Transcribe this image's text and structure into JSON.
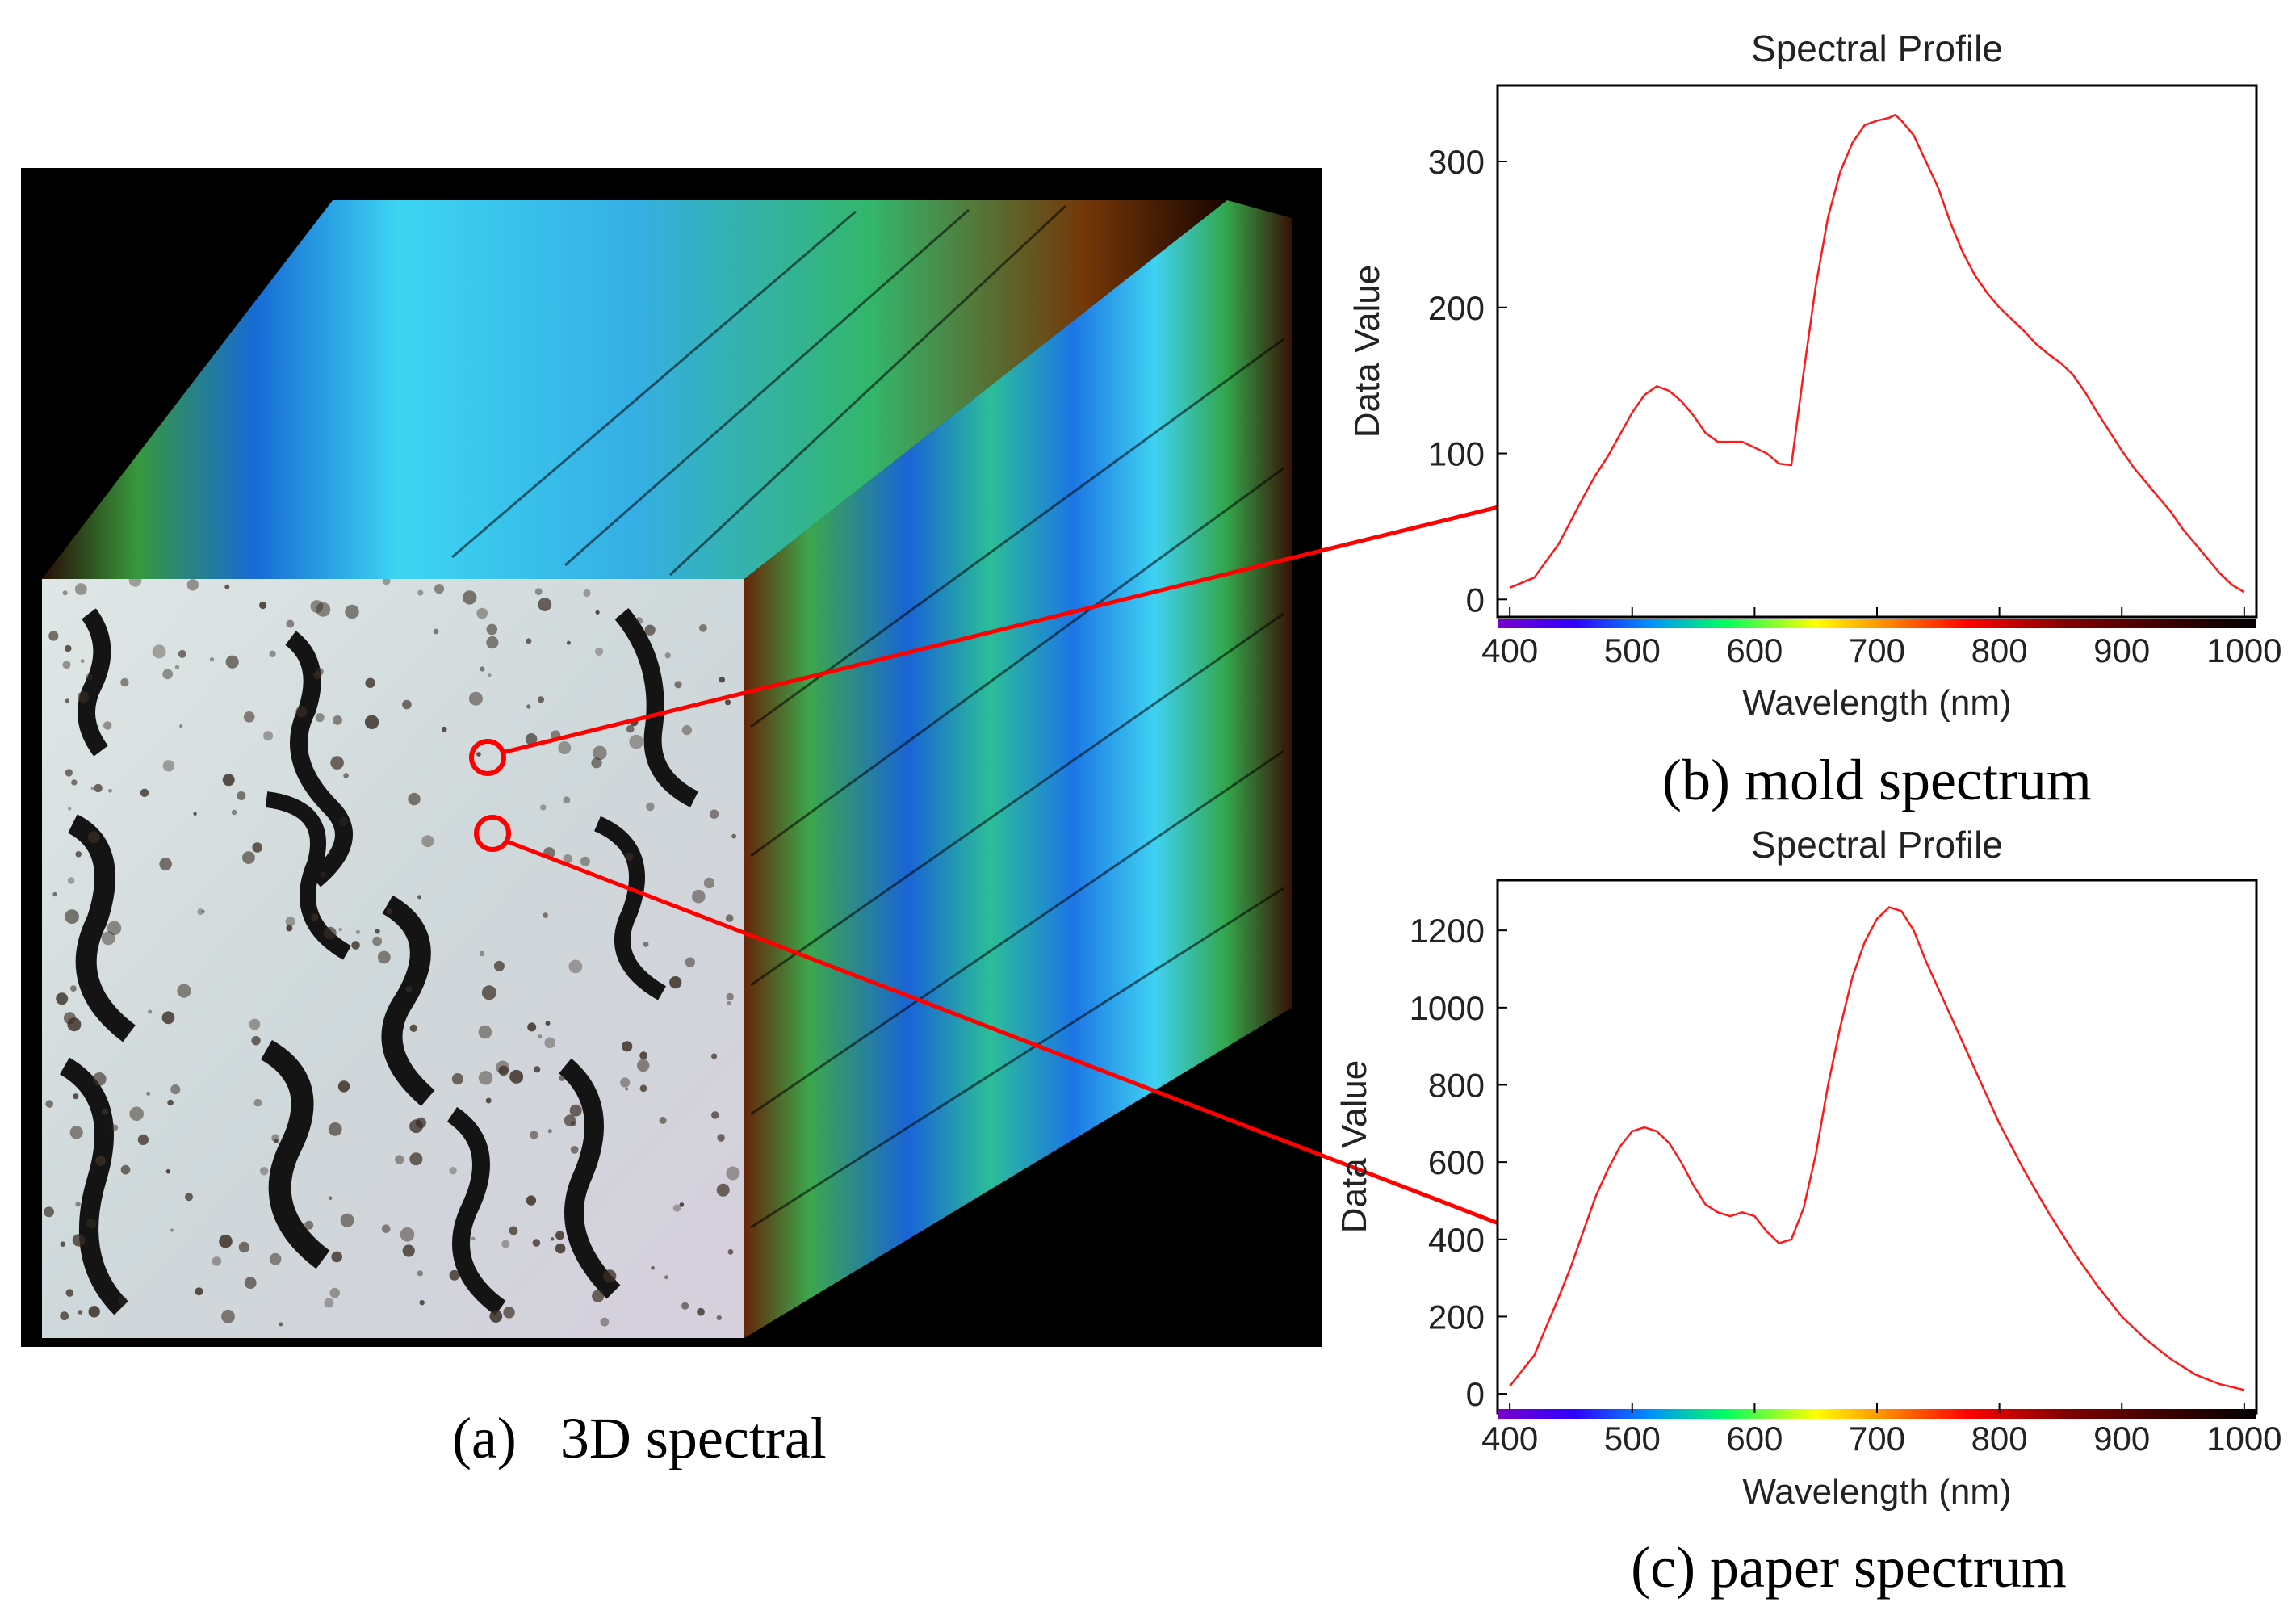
{
  "panel_a": {
    "caption": "(a)   3D spectral",
    "markers": [
      {
        "name": "mold-sample-marker",
        "target": "chart_b"
      },
      {
        "name": "paper-sample-marker",
        "target": "chart_c"
      }
    ]
  },
  "chart_data": [
    {
      "id": "chart_b",
      "type": "line",
      "title": "Spectral Profile",
      "xlabel": "Wavelength (nm)",
      "ylabel": "Data Value",
      "caption": "(b) mold spectrum",
      "xlim": [
        390,
        1010
      ],
      "ylim": [
        -12,
        352
      ],
      "xticks": [
        400,
        500,
        600,
        700,
        800,
        900,
        1000
      ],
      "yticks": [
        0,
        100,
        200,
        300
      ],
      "line_color": "#ff1a1a",
      "grid": false,
      "series": [
        {
          "x": [
            400,
            420,
            440,
            460,
            470,
            480,
            500,
            510,
            520,
            530,
            540,
            550,
            560,
            570,
            580,
            590,
            600,
            610,
            620,
            630,
            640,
            650,
            660,
            670,
            680,
            690,
            700,
            710,
            715,
            720,
            730,
            740,
            750,
            760,
            770,
            780,
            790,
            800,
            810,
            820,
            830,
            840,
            850,
            860,
            870,
            880,
            890,
            900,
            910,
            920,
            930,
            940,
            950,
            960,
            970,
            980,
            990,
            1000
          ],
          "values": [
            8,
            15,
            38,
            70,
            85,
            98,
            128,
            140,
            146,
            143,
            136,
            126,
            114,
            108,
            108,
            108,
            104,
            100,
            93,
            92,
            155,
            215,
            262,
            293,
            313,
            325,
            328,
            330,
            332,
            328,
            318,
            300,
            282,
            258,
            238,
            222,
            210,
            200,
            192,
            184,
            175,
            168,
            162,
            154,
            142,
            128,
            115,
            102,
            90,
            80,
            70,
            60,
            48,
            38,
            28,
            18,
            10,
            5
          ]
        }
      ]
    },
    {
      "id": "chart_c",
      "type": "line",
      "title": "Spectral Profile",
      "xlabel": "Wavelength (nm)",
      "ylabel": "Data Value",
      "caption": "(c) paper spectrum",
      "xlim": [
        390,
        1010
      ],
      "ylim": [
        -50,
        1330
      ],
      "xticks": [
        400,
        500,
        600,
        700,
        800,
        900,
        1000
      ],
      "yticks": [
        0,
        200,
        400,
        600,
        800,
        1000,
        1200
      ],
      "line_color": "#ff1a1a",
      "grid": false,
      "series": [
        {
          "x": [
            400,
            420,
            440,
            450,
            460,
            470,
            480,
            490,
            500,
            510,
            520,
            530,
            540,
            550,
            560,
            570,
            580,
            590,
            600,
            610,
            620,
            630,
            640,
            650,
            660,
            670,
            680,
            690,
            700,
            710,
            720,
            730,
            740,
            760,
            780,
            800,
            820,
            840,
            860,
            880,
            900,
            920,
            940,
            960,
            980,
            1000
          ],
          "values": [
            20,
            100,
            250,
            330,
            420,
            510,
            580,
            640,
            680,
            690,
            680,
            650,
            600,
            540,
            490,
            470,
            460,
            470,
            460,
            420,
            390,
            400,
            480,
            620,
            800,
            950,
            1080,
            1170,
            1230,
            1260,
            1250,
            1200,
            1120,
            980,
            840,
            700,
            580,
            470,
            370,
            280,
            200,
            140,
            90,
            50,
            25,
            10
          ]
        }
      ]
    }
  ]
}
